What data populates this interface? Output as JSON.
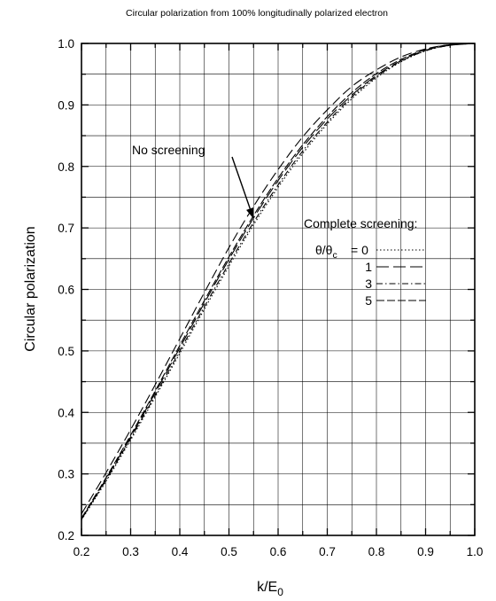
{
  "chart_data": {
    "type": "line",
    "title": "Circular polarization from 100% longitudinally polarized electron",
    "xlabel": "k/E",
    "xlabel_sub": "0",
    "ylabel": "Circular polarization",
    "xlim": [
      0.2,
      1.0
    ],
    "ylim": [
      0.2,
      1.0
    ],
    "grid": true,
    "x_ticks": [
      "0.2",
      "0.3",
      "0.4",
      "0.5",
      "0.6",
      "0.7",
      "0.8",
      "0.9",
      "1.0"
    ],
    "y_ticks": [
      "0.2",
      "0.3",
      "0.4",
      "0.5",
      "0.6",
      "0.7",
      "0.8",
      "0.9",
      "1.0"
    ],
    "series": [
      {
        "id": "no-screening",
        "dash": "11 5",
        "x": [
          0.2,
          0.25,
          0.3,
          0.35,
          0.4,
          0.45,
          0.5,
          0.55,
          0.6,
          0.65,
          0.7,
          0.75,
          0.8,
          0.85,
          0.9,
          0.95,
          1.0
        ],
        "y": [
          0.235,
          0.302,
          0.372,
          0.445,
          0.52,
          0.595,
          0.668,
          0.735,
          0.795,
          0.848,
          0.892,
          0.93,
          0.957,
          0.978,
          0.991,
          0.998,
          1.0
        ]
      },
      {
        "id": "screening-theta-0",
        "dash": "1.5 2.5",
        "x": [
          0.2,
          0.25,
          0.3,
          0.35,
          0.4,
          0.45,
          0.5,
          0.55,
          0.6,
          0.65,
          0.7,
          0.75,
          0.8,
          0.85,
          0.9,
          0.95,
          1.0
        ],
        "y": [
          0.225,
          0.288,
          0.355,
          0.425,
          0.496,
          0.568,
          0.638,
          0.705,
          0.766,
          0.821,
          0.869,
          0.91,
          0.944,
          0.97,
          0.988,
          0.997,
          1.0
        ]
      },
      {
        "id": "screening-theta-1",
        "dash": "14 5",
        "x": [
          0.2,
          0.25,
          0.3,
          0.35,
          0.4,
          0.45,
          0.5,
          0.55,
          0.6,
          0.65,
          0.7,
          0.75,
          0.8,
          0.85,
          0.9,
          0.95,
          1.0
        ],
        "y": [
          0.226,
          0.292,
          0.36,
          0.432,
          0.505,
          0.578,
          0.649,
          0.716,
          0.777,
          0.831,
          0.877,
          0.916,
          0.948,
          0.972,
          0.989,
          0.997,
          1.0
        ]
      },
      {
        "id": "screening-theta-3",
        "dash": "7 3 1.5 3",
        "x": [
          0.2,
          0.25,
          0.3,
          0.35,
          0.4,
          0.45,
          0.5,
          0.55,
          0.6,
          0.65,
          0.7,
          0.75,
          0.8,
          0.85,
          0.9,
          0.95,
          1.0
        ],
        "y": [
          0.227,
          0.29,
          0.358,
          0.428,
          0.5,
          0.572,
          0.642,
          0.709,
          0.77,
          0.825,
          0.872,
          0.913,
          0.946,
          0.971,
          0.988,
          0.997,
          1.0
        ]
      },
      {
        "id": "screening-theta-5",
        "dash": "9 3",
        "x": [
          0.2,
          0.25,
          0.3,
          0.35,
          0.4,
          0.45,
          0.5,
          0.55,
          0.6,
          0.65,
          0.7,
          0.75,
          0.8,
          0.85,
          0.9,
          0.95,
          1.0
        ],
        "y": [
          0.228,
          0.294,
          0.363,
          0.435,
          0.509,
          0.582,
          0.653,
          0.72,
          0.781,
          0.835,
          0.881,
          0.92,
          0.951,
          0.974,
          0.99,
          0.998,
          1.0
        ]
      }
    ],
    "annotations": {
      "no_screening": "No screening",
      "no_screening_arrow_tip": [
        0.55,
        0.715
      ],
      "legend_title": "Complete screening:",
      "legend_symbol": "θ/θ",
      "legend_symbol_sub": "c",
      "legend_entries": [
        {
          "series": "screening-theta-0",
          "prefix": "= ",
          "label": "0"
        },
        {
          "series": "screening-theta-1",
          "prefix": "",
          "label": "1"
        },
        {
          "series": "screening-theta-3",
          "prefix": "",
          "label": "3"
        },
        {
          "series": "screening-theta-5",
          "prefix": "",
          "label": "5"
        }
      ]
    }
  }
}
